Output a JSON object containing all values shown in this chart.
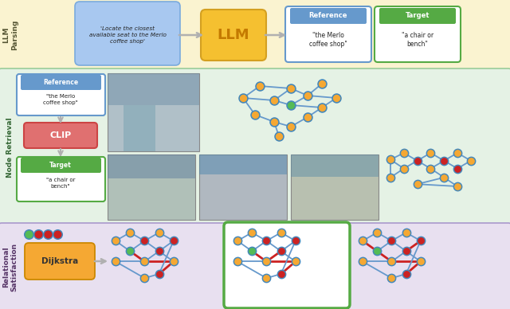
{
  "llm_parsing_bg": "#faf3d0",
  "node_retrieval_bg": "#e5f2e5",
  "relational_bg": "#e8e0f0",
  "llm_bubble_text": "'Locate the closest\navailable seat to the Merlo\ncoffee shop'",
  "llm_box_text": "LLM",
  "reference_top_text": "\"the Merlo\ncoffee shop\"",
  "target_top_text": "\"a chair or\nbench\"",
  "clip_text": "CLIP",
  "dijkstra_text": "Dijkstra",
  "ref_label": "Reference",
  "target_label": "Target",
  "ref_small_text": "\"the Merlo\ncoffee shop\"",
  "target_small_text": "\"a chair or\nbench\"",
  "arrow_color": "#b0b0b0",
  "node_orange": "#f5a833",
  "node_red": "#cc2222",
  "node_green": "#55bb55",
  "edge_blue": "#6699cc",
  "edge_red": "#cc2222",
  "outline_blue": "#4488bb",
  "ref_box_color": "#6699cc",
  "target_box_color": "#55aa44",
  "clip_box_color": "#e07070",
  "dijkstra_box_color": "#f5a833",
  "section_label_llm": "LLM\nParsing",
  "section_label_nr": "Node Retrieval",
  "section_label_rs": "Relational\nSatisfaction"
}
